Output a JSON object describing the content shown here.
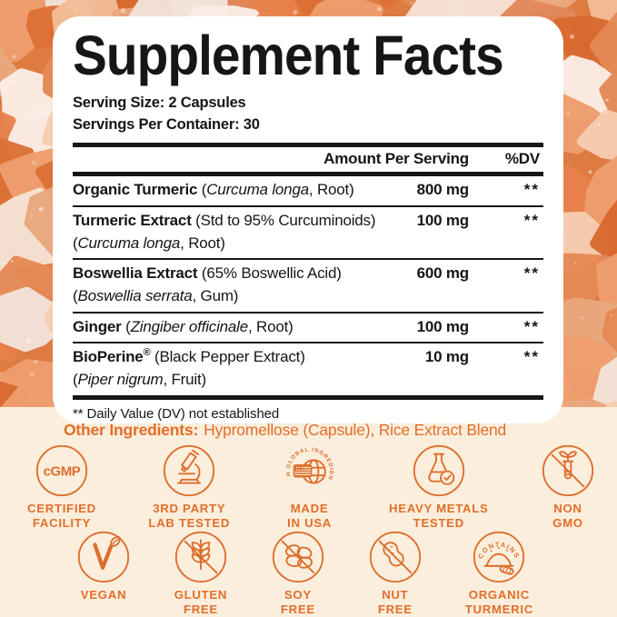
{
  "colors": {
    "accent": "#E26E2A",
    "icon_stroke": "#DD6F2E",
    "cream": "#FBEEDC",
    "ink": "#161616"
  },
  "panel": {
    "title": "Supplement Facts",
    "serving_size": "Serving Size: 2 Capsules",
    "servings_per_container": "Servings Per Container: 30",
    "columns": {
      "amount": "Amount Per Serving",
      "dv": "%DV"
    },
    "rows": [
      {
        "line1": [
          {
            "t": "Organic Turmeric",
            "b": 1
          },
          {
            "t": " ("
          },
          {
            "t": "Curcuma longa",
            "i": 1
          },
          {
            "t": ", Root)"
          }
        ],
        "line2": [],
        "amount": "800 mg",
        "dv": "**"
      },
      {
        "line1": [
          {
            "t": "Turmeric Extract",
            "b": 1
          },
          {
            "t": " (Std to 95% Curcuminoids)"
          }
        ],
        "line2": [
          {
            "t": "("
          },
          {
            "t": "Curcuma longa",
            "i": 1
          },
          {
            "t": ", Root)"
          }
        ],
        "amount": "100 mg",
        "dv": "**"
      },
      {
        "line1": [
          {
            "t": "Boswellia Extract",
            "b": 1
          },
          {
            "t": " (65% Boswellic Acid)"
          }
        ],
        "line2": [
          {
            "t": "("
          },
          {
            "t": "Boswellia serrata",
            "i": 1
          },
          {
            "t": ", Gum)"
          }
        ],
        "amount": "600 mg",
        "dv": "**"
      },
      {
        "line1": [
          {
            "t": "Ginger",
            "b": 1
          },
          {
            "t": " ("
          },
          {
            "t": "Zingiber officinale",
            "i": 1
          },
          {
            "t": ", Root)"
          }
        ],
        "line2": [],
        "amount": "100 mg",
        "dv": "**"
      },
      {
        "line1": [
          {
            "t": "BioPerine",
            "b": 1
          },
          {
            "t": "®",
            "sup": 1
          },
          {
            "t": " (Black Pepper Extract)"
          }
        ],
        "line2": [
          {
            "t": "("
          },
          {
            "t": "Piper nigrum",
            "i": 1
          },
          {
            "t": ", Fruit)"
          }
        ],
        "amount": "10 mg",
        "dv": "**"
      }
    ],
    "footnote": "** Daily Value (DV) not established"
  },
  "other_ingredients": {
    "label": "Other Ingredients:",
    "text": "Hypromellose (Capsule), Rice Extract Blend"
  },
  "badges": {
    "row1": [
      {
        "icon": "cgmp",
        "icon_text": "cGMP",
        "label": [
          "CERTIFIED",
          "FACILITY"
        ]
      },
      {
        "icon": "microscope",
        "label": [
          "3RD PARTY",
          "LAB TESTED"
        ]
      },
      {
        "icon": "globe-flag",
        "ring_text": "WITH GLOBAL INGREDIENTS",
        "label": [
          "MADE",
          "IN USA"
        ]
      },
      {
        "icon": "flask-check",
        "label": [
          "HEAVY METALS",
          "TESTED"
        ]
      },
      {
        "icon": "non-gmo",
        "label": [
          "NON",
          "GMO"
        ]
      }
    ],
    "row2": [
      {
        "icon": "vegan",
        "label": [
          "VEGAN"
        ]
      },
      {
        "icon": "gluten-free",
        "label": [
          "GLUTEN",
          "FREE"
        ]
      },
      {
        "icon": "soy-free",
        "label": [
          "SOY",
          "FREE"
        ]
      },
      {
        "icon": "nut-free",
        "label": [
          "NUT",
          "FREE"
        ]
      },
      {
        "icon": "organic-turmeric",
        "ring_text": "CONTAINS",
        "label": [
          "ORGANIC",
          "TURMERIC"
        ]
      }
    ]
  }
}
